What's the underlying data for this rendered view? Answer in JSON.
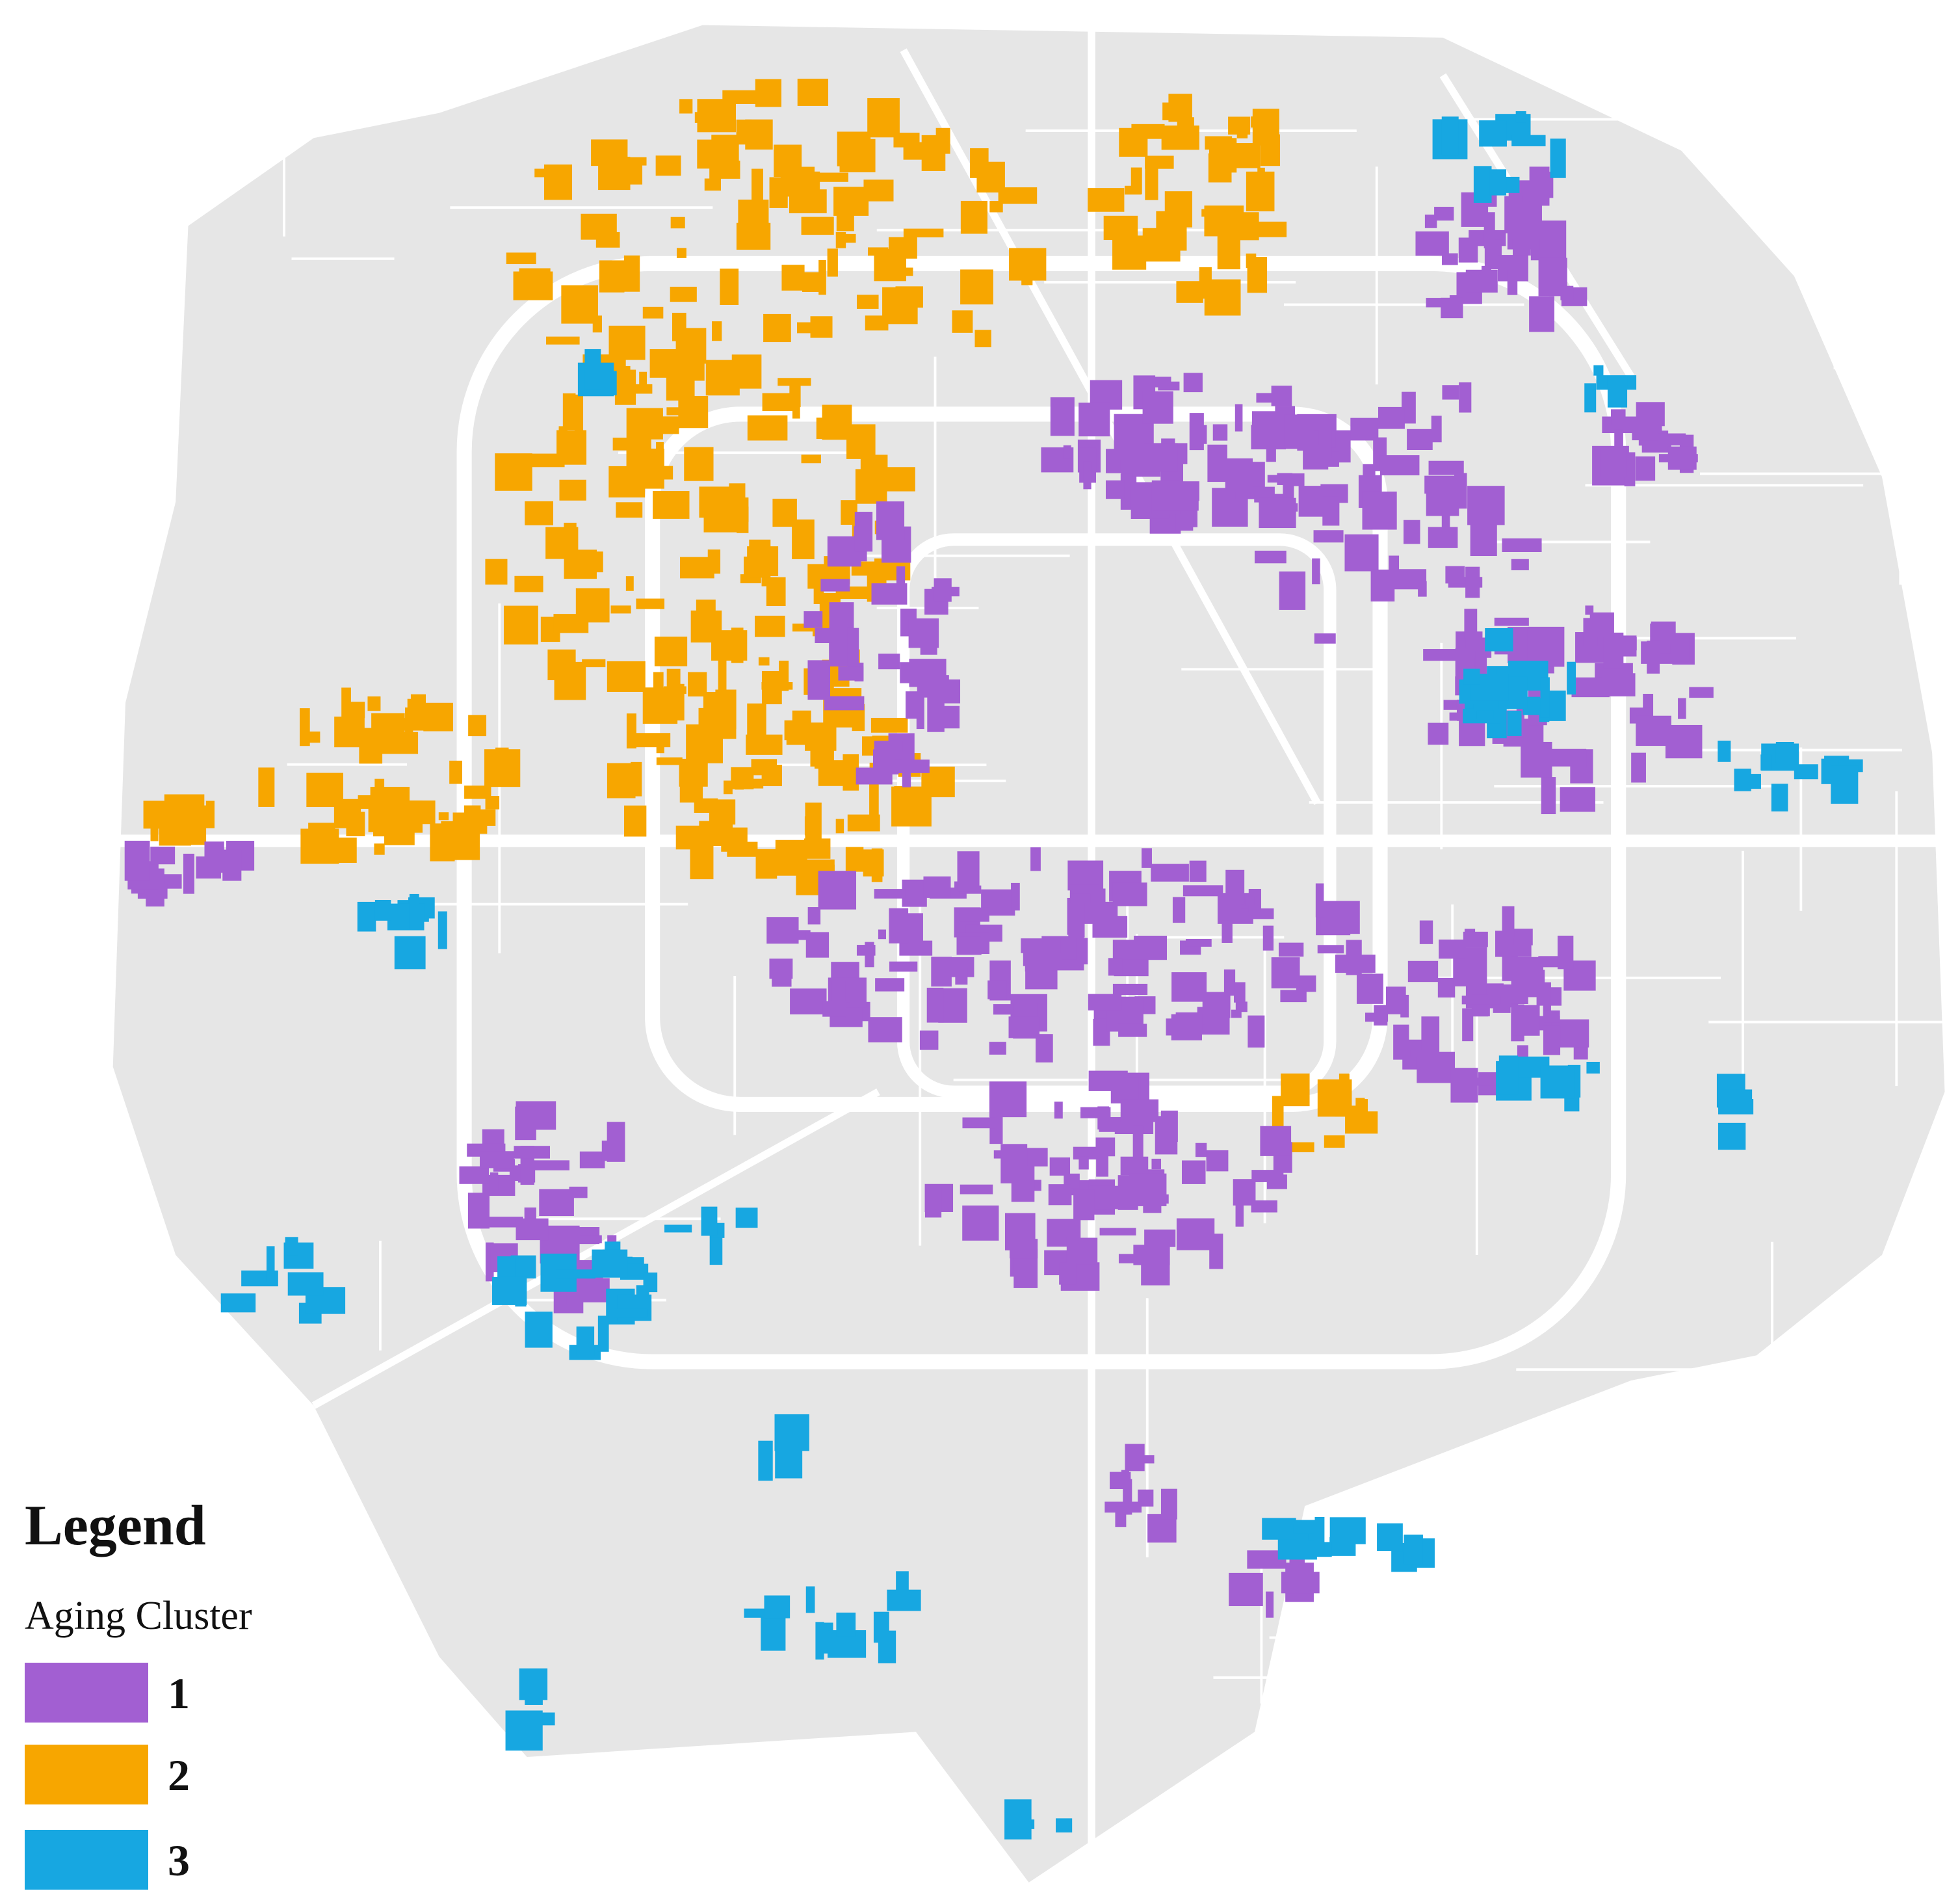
{
  "legend": {
    "title": "Legend",
    "subtitle": "Aging Cluster",
    "items": [
      {
        "label": "1",
        "color": "#a25fd2"
      },
      {
        "label": "2",
        "color": "#f7a600"
      },
      {
        "label": "3",
        "color": "#17a7e1"
      }
    ]
  }
}
